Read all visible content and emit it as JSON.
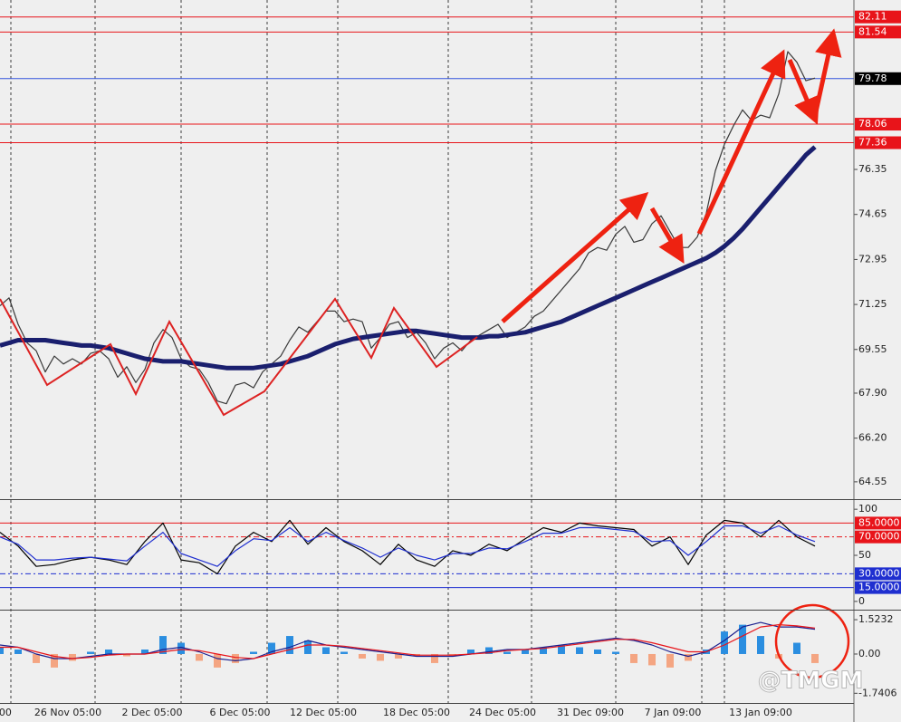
{
  "watermark": "@TMGM",
  "chart_data": [
    {
      "type": "line",
      "x_labels": [
        ":00",
        "26 Nov 05:00",
        "2 Dec 05:00",
        "6 Dec 05:00",
        "12 Dec 05:00",
        "18 Dec 05:00",
        "24 Dec 05:00",
        "31 Dec 09:00",
        "7 Jan 09:00",
        "13 Jan 09:00"
      ],
      "ylim": [
        63.93,
        82.75
      ],
      "yticks": [
        76.35,
        74.65,
        72.95,
        71.25,
        69.55,
        {
          "value": 67.9,
          "label": "67.90"
        },
        {
          "value": 66.2,
          "label": "66.20"
        },
        64.55
      ],
      "levels": [
        {
          "value": 82.11,
          "color": "#e8141a"
        },
        {
          "value": 81.54,
          "color": "#e8141a"
        },
        {
          "value": 79.78,
          "color": "#3355dd",
          "box": "#000000"
        },
        {
          "value": 78.06,
          "color": "#e8141a"
        },
        {
          "value": 77.36,
          "color": "#e8141a"
        }
      ],
      "series": [
        {
          "color": "#3a3a3a",
          "values": [
            71.2,
            71.5,
            70.5,
            69.8,
            69.5,
            68.7,
            69.3,
            69.0,
            69.2,
            69.0,
            69.4,
            69.5,
            69.2,
            68.5,
            68.9,
            68.3,
            68.8,
            69.8,
            70.3,
            70.0,
            69.2,
            68.9,
            68.8,
            68.3,
            67.6,
            67.5,
            68.2,
            68.3,
            68.1,
            68.7,
            69.0,
            69.3,
            69.9,
            70.4,
            70.2,
            70.6,
            71.0,
            71.0,
            70.6,
            70.7,
            70.6,
            69.6,
            70.0,
            70.5,
            70.6,
            70.0,
            70.2,
            69.8,
            69.2,
            69.6,
            69.8,
            69.5,
            69.9,
            70.1,
            70.3,
            70.5,
            70.0,
            70.2,
            70.4,
            70.8,
            71.0,
            71.4,
            71.8,
            72.2,
            72.6,
            73.2,
            73.4,
            73.3,
            73.9,
            74.2,
            73.6,
            73.7,
            74.3,
            74.6,
            74.0,
            73.4,
            73.4,
            73.8,
            74.7,
            76.3,
            77.3,
            78.0,
            78.6,
            78.2,
            78.4,
            78.3,
            79.2,
            80.8,
            80.4,
            79.7,
            79.8
          ]
        },
        {
          "color": "#1a1f6e",
          "values": [
            69.7,
            69.8,
            69.9,
            69.9,
            69.9,
            69.9,
            69.85,
            69.8,
            69.75,
            69.7,
            69.7,
            69.65,
            69.6,
            69.5,
            69.4,
            69.3,
            69.2,
            69.15,
            69.1,
            69.1,
            69.1,
            69.05,
            69.0,
            68.95,
            68.9,
            68.85,
            68.85,
            68.85,
            68.85,
            68.9,
            68.95,
            69.0,
            69.1,
            69.2,
            69.3,
            69.45,
            69.6,
            69.75,
            69.85,
            69.95,
            70.0,
            70.05,
            70.1,
            70.15,
            70.2,
            70.25,
            70.25,
            70.2,
            70.15,
            70.1,
            70.05,
            70.0,
            70.0,
            70.0,
            70.05,
            70.05,
            70.1,
            70.15,
            70.2,
            70.3,
            70.4,
            70.5,
            70.6,
            70.75,
            70.9,
            71.05,
            71.2,
            71.35,
            71.5,
            71.65,
            71.8,
            71.95,
            72.1,
            72.25,
            72.4,
            72.55,
            72.7,
            72.85,
            73.0,
            73.2,
            73.45,
            73.75,
            74.1,
            74.5,
            74.9,
            75.3,
            75.7,
            76.1,
            76.5,
            76.9,
            77.2
          ]
        }
      ]
    },
    {
      "type": "line",
      "ylim": [
        -7,
        109
      ],
      "yticks": [
        100,
        50,
        0
      ],
      "levels": [
        {
          "value": 85,
          "label": "85.0000",
          "color": "#e8141a"
        },
        {
          "value": 70,
          "label": "70.0000",
          "color": "#e8141a",
          "dash": true
        },
        {
          "value": 30,
          "label": "30.0000",
          "color": "#1f2fd0",
          "dash": true
        },
        {
          "value": 15,
          "label": "15.0000",
          "color": "#1f2fd0"
        }
      ],
      "series": [
        {
          "color": "#000000",
          "values": [
            75,
            60,
            38,
            40,
            45,
            48,
            45,
            40,
            65,
            85,
            45,
            42,
            30,
            60,
            75,
            65,
            88,
            62,
            80,
            65,
            55,
            40,
            62,
            45,
            38,
            55,
            50,
            62,
            55,
            68,
            80,
            75,
            85,
            82,
            80,
            78,
            60,
            70,
            40,
            72,
            88,
            85,
            70,
            88,
            70,
            60
          ]
        },
        {
          "color": "#1f2fd0",
          "values": [
            70,
            62,
            45,
            45,
            47,
            48,
            46,
            44,
            60,
            75,
            52,
            45,
            38,
            55,
            68,
            66,
            80,
            65,
            75,
            66,
            58,
            48,
            58,
            50,
            45,
            52,
            52,
            58,
            57,
            65,
            74,
            74,
            80,
            80,
            78,
            76,
            65,
            66,
            50,
            65,
            82,
            82,
            74,
            82,
            72,
            65
          ]
        }
      ]
    },
    {
      "type": "bar",
      "ylim": [
        -2.13,
        1.887
      ],
      "yticks": [
        1.5232,
        {
          "value": 0,
          "label": "0.00"
        },
        -1.7406
      ],
      "colors": {
        "up": "#2b8ee0",
        "down": "#f4a582"
      },
      "values": [
        0.3,
        0.2,
        -0.4,
        -0.6,
        -0.3,
        0.1,
        0.2,
        -0.1,
        0.2,
        0.8,
        0.5,
        -0.3,
        -0.6,
        -0.4,
        0.1,
        0.5,
        0.8,
        0.6,
        0.3,
        0.1,
        -0.2,
        -0.3,
        -0.2,
        -0.1,
        -0.4,
        -0.1,
        0.2,
        0.3,
        0.1,
        0.2,
        0.3,
        0.4,
        0.3,
        0.2,
        0.1,
        -0.4,
        -0.5,
        -0.6,
        -0.3,
        0.2,
        1.0,
        1.3,
        0.8,
        -0.2,
        0.5,
        -0.4
      ],
      "series": [
        {
          "color": "#1a1f8e",
          "values": [
            0.4,
            0.3,
            0.0,
            -0.2,
            -0.2,
            -0.1,
            0.0,
            0.0,
            0.0,
            0.2,
            0.3,
            0.1,
            -0.2,
            -0.3,
            -0.2,
            0.1,
            0.3,
            0.6,
            0.4,
            0.3,
            0.2,
            0.1,
            0.0,
            -0.1,
            -0.1,
            -0.1,
            0.0,
            0.1,
            0.2,
            0.2,
            0.3,
            0.4,
            0.5,
            0.6,
            0.7,
            0.6,
            0.4,
            0.1,
            -0.1,
            0.1,
            0.6,
            1.2,
            1.4,
            1.2,
            1.2,
            1.1
          ]
        },
        {
          "color": "#e8141a",
          "values": [
            0.3,
            0.3,
            0.1,
            -0.1,
            -0.2,
            -0.15,
            -0.05,
            0.0,
            0.0,
            0.1,
            0.2,
            0.15,
            0.0,
            -0.15,
            -0.2,
            0.0,
            0.2,
            0.4,
            0.4,
            0.35,
            0.25,
            0.15,
            0.05,
            -0.05,
            -0.05,
            -0.05,
            0.0,
            0.05,
            0.15,
            0.2,
            0.25,
            0.35,
            0.45,
            0.55,
            0.65,
            0.65,
            0.5,
            0.3,
            0.1,
            0.1,
            0.4,
            0.8,
            1.2,
            1.3,
            1.25,
            1.15
          ]
        }
      ]
    }
  ]
}
